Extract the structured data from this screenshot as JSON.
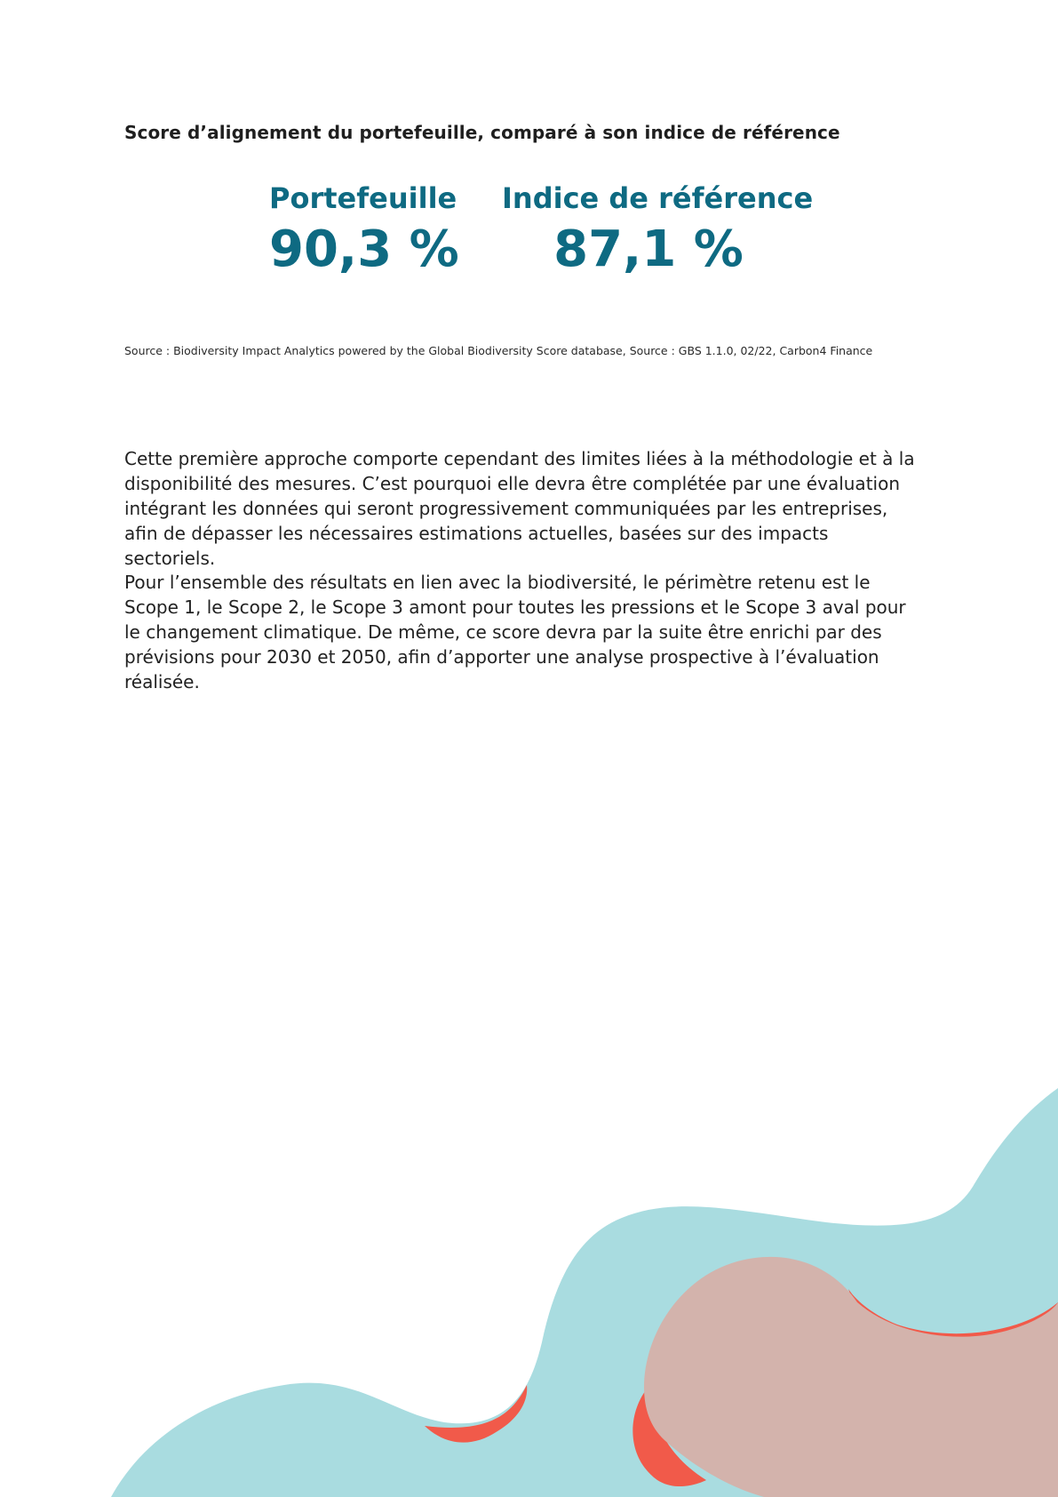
{
  "section": {
    "title": "Score d’alignement du portefeuille, comparé à son indice de référence"
  },
  "scores": {
    "portfolio": {
      "label": "Portefeuille",
      "value": "90,3 %"
    },
    "benchmark": {
      "label": "Indice de référence",
      "value": "87,1 %"
    }
  },
  "source_note": "Source : Biodiversity Impact Analytics powered by the Global Biodiversity Score database, Source : GBS 1.1.0, 02/22, Carbon4 Finance",
  "paragraphs": [
    "Cette première approche comporte cependant des limites liées à la méthodologie et à la disponibilité des mesures. C’est pourquoi elle devra être complétée par une évaluation intégrant les données qui seront progressivement communiquées par les entreprises, afin de dépasser les nécessaires estimations actuelles, basées sur des impacts sectoriels.",
    "Pour l’ensemble des résultats en lien avec la biodiversité, le périmètre retenu est le Scope 1, le Scope 2, le Scope 3 amont pour toutes les pressions et le Scope 3 aval pour le changement climatique. De même, ce score devra par la suite être enrichi par des prévisions pour 2030 et 2050, afin d’apporter une analyse prospective à l’évaluation réalisée."
  ],
  "colors": {
    "accent": "#0e6a82",
    "decor_teal": "#a9dce0",
    "decor_red": "#f15a4a",
    "decor_rose": "#d3b3ac"
  }
}
